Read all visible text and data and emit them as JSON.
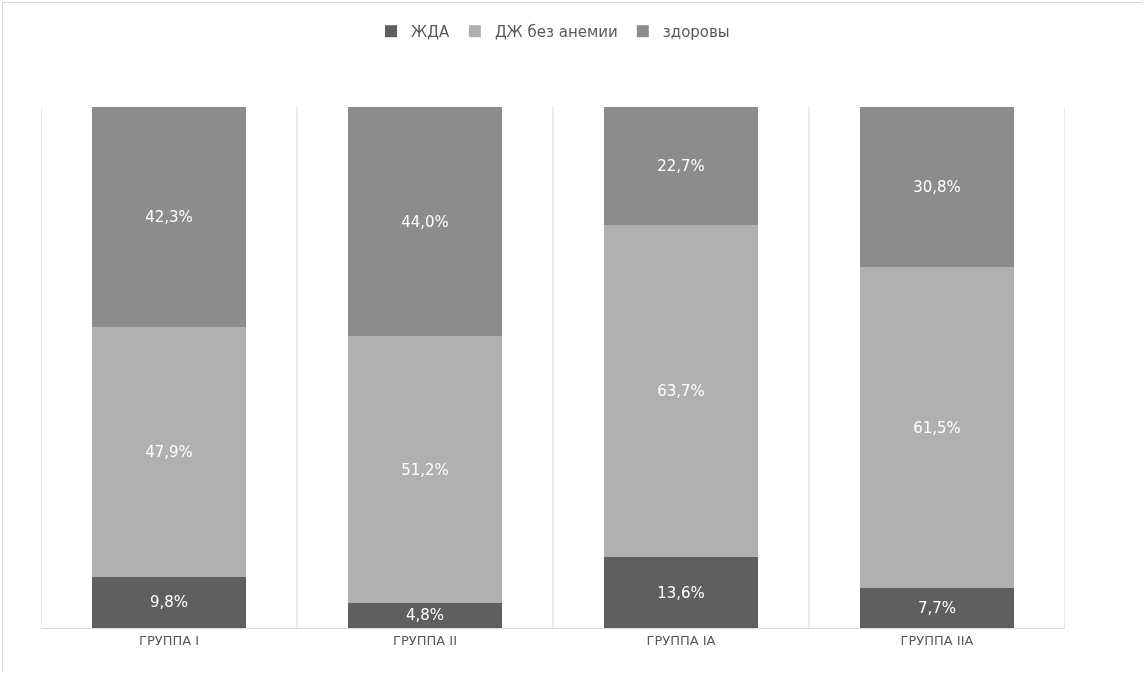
{
  "chart_data": {
    "type": "bar",
    "stacked": true,
    "legend": "top",
    "grid": "x",
    "categories": [
      "ГРУППА I",
      "ГРУППА II",
      "ГРУППА IA",
      "ГРУППА IIA"
    ],
    "series": [
      {
        "name": "ЖДА",
        "color": "#5f5f5f",
        "values": [
          9.8,
          4.8,
          13.6,
          7.7
        ],
        "value_labels": [
          "9,8%",
          "4,8%",
          "13,6%",
          "7,7%"
        ]
      },
      {
        "name": "ДЖ без анемии",
        "color": "#b0b0b0",
        "values": [
          47.9,
          51.2,
          63.7,
          61.5
        ],
        "value_labels": [
          "47,9%",
          "51,2%",
          "63,7%",
          "61,5%"
        ]
      },
      {
        "name": "здоровы",
        "color": "#8c8c8c",
        "values": [
          42.3,
          44.0,
          22.7,
          30.8
        ],
        "value_labels": [
          "42,3%",
          "44,0%",
          "22,7%",
          "30,8%"
        ]
      }
    ]
  }
}
